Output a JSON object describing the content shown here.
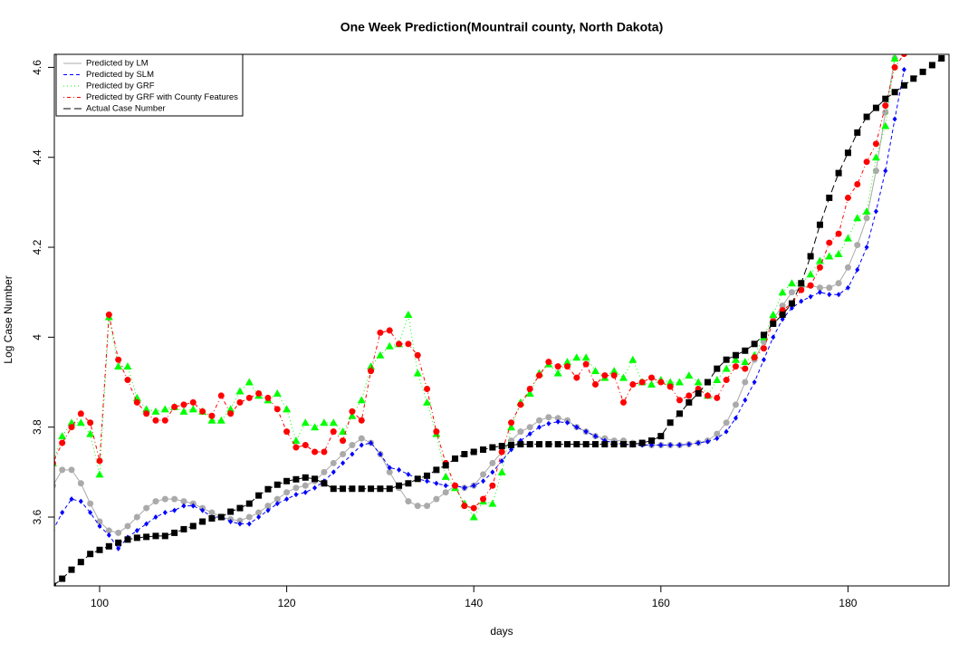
{
  "chart_data": {
    "type": "line",
    "title": "One Week Prediction(Mountrail county, North Dakota)",
    "x_label": "days",
    "y_label": "Log Case Number",
    "xlim": [
      95.16,
      190.8
    ],
    "ylim": [
      3.447,
      4.629
    ],
    "xticks": [
      100,
      120,
      140,
      160,
      180
    ],
    "yticks": [
      3.6,
      3.8,
      4.0,
      4.2,
      4.4,
      4.6
    ],
    "legend": "top-left",
    "x": [
      95,
      96,
      97,
      98,
      99,
      100,
      101,
      102,
      103,
      104,
      105,
      106,
      107,
      108,
      109,
      110,
      111,
      112,
      113,
      114,
      115,
      116,
      117,
      118,
      119,
      120,
      121,
      122,
      123,
      124,
      125,
      126,
      127,
      128,
      129,
      130,
      131,
      132,
      133,
      134,
      135,
      136,
      137,
      138,
      139,
      140,
      141,
      142,
      143,
      144,
      145,
      146,
      147,
      148,
      149,
      150,
      151,
      152,
      153,
      154,
      155,
      156,
      157,
      158,
      159,
      160,
      161,
      162,
      163,
      164,
      165,
      166,
      167,
      168,
      169,
      170,
      171,
      172,
      173,
      174,
      175,
      176,
      177,
      178,
      179,
      180,
      181,
      182,
      183,
      184,
      185,
      186,
      187,
      188,
      189,
      190
    ],
    "series": [
      {
        "name": "Predicted by LM",
        "color": "#aaaaaa",
        "marker": "circle",
        "dash": "solid",
        "values": [
          3.67,
          3.705,
          3.705,
          3.675,
          3.63,
          3.59,
          3.57,
          3.565,
          3.58,
          3.6,
          3.62,
          3.635,
          3.64,
          3.64,
          3.635,
          3.63,
          3.62,
          3.61,
          3.6,
          3.595,
          3.592,
          3.6,
          3.61,
          3.625,
          3.64,
          3.655,
          3.665,
          3.67,
          3.68,
          3.7,
          3.72,
          3.74,
          3.76,
          3.775,
          3.765,
          3.74,
          3.7,
          3.665,
          3.635,
          3.625,
          3.625,
          3.64,
          3.655,
          3.67,
          3.665,
          3.67,
          3.695,
          3.72,
          3.745,
          3.77,
          3.79,
          3.8,
          3.815,
          3.822,
          3.82,
          3.815,
          3.8,
          3.79,
          3.78,
          3.775,
          3.77,
          3.77,
          3.765,
          3.762,
          3.76,
          3.76,
          3.76,
          3.76,
          3.762,
          3.765,
          3.77,
          3.785,
          3.81,
          3.85,
          3.9,
          3.95,
          3.99,
          4.04,
          4.07,
          4.1,
          4.11,
          4.115,
          4.11,
          4.11,
          4.12,
          4.155,
          4.205,
          4.265,
          4.37,
          4.5,
          4.62,
          null,
          null,
          null,
          null,
          null
        ]
      },
      {
        "name": "Predicted by SLM",
        "color": "#0000ff",
        "marker": "diamond",
        "dash": "dashed",
        "values": [
          3.57,
          3.61,
          3.64,
          3.635,
          3.61,
          3.58,
          3.56,
          3.53,
          3.555,
          3.57,
          3.585,
          3.6,
          3.61,
          3.615,
          3.625,
          3.625,
          3.615,
          3.6,
          3.6,
          3.59,
          3.585,
          3.585,
          3.6,
          3.615,
          3.63,
          3.64,
          3.65,
          3.655,
          3.665,
          3.68,
          3.7,
          3.72,
          3.74,
          3.76,
          3.765,
          3.74,
          3.71,
          3.705,
          3.695,
          3.685,
          3.68,
          3.675,
          3.67,
          3.67,
          3.665,
          3.67,
          3.68,
          3.7,
          3.725,
          3.75,
          3.77,
          3.785,
          3.8,
          3.808,
          3.812,
          3.81,
          3.8,
          3.79,
          3.78,
          3.77,
          3.765,
          3.762,
          3.76,
          3.76,
          3.76,
          3.76,
          3.76,
          3.76,
          3.762,
          3.765,
          3.768,
          3.775,
          3.79,
          3.82,
          3.86,
          3.9,
          3.95,
          4.0,
          4.04,
          4.065,
          4.08,
          4.09,
          4.1,
          4.095,
          4.095,
          4.11,
          4.15,
          4.2,
          4.28,
          4.37,
          4.485,
          4.595,
          null,
          null,
          null,
          null
        ]
      },
      {
        "name": "Predicted by GRF",
        "color": "#00ff00",
        "marker": "triangle",
        "dash": "dotted",
        "values": [
          3.72,
          3.78,
          3.81,
          3.81,
          3.785,
          3.695,
          4.045,
          3.935,
          3.935,
          3.865,
          3.84,
          3.835,
          3.84,
          3.845,
          3.835,
          3.84,
          3.835,
          3.815,
          3.815,
          3.84,
          3.88,
          3.9,
          3.87,
          3.86,
          3.875,
          3.84,
          3.77,
          3.81,
          3.8,
          3.81,
          3.81,
          3.79,
          3.825,
          3.86,
          3.935,
          3.96,
          3.98,
          3.985,
          4.05,
          3.92,
          3.855,
          3.785,
          3.69,
          3.665,
          3.63,
          3.6,
          3.635,
          3.63,
          3.7,
          3.8,
          3.855,
          3.875,
          3.92,
          3.94,
          3.92,
          3.945,
          3.955,
          3.955,
          3.925,
          3.91,
          3.925,
          3.91,
          3.95,
          3.9,
          3.895,
          3.905,
          3.9,
          3.9,
          3.915,
          3.9,
          3.87,
          3.905,
          3.93,
          3.95,
          3.945,
          3.96,
          4.0,
          4.05,
          4.1,
          4.12,
          4.12,
          4.14,
          4.17,
          4.18,
          4.185,
          4.22,
          4.265,
          4.28,
          4.4,
          4.47,
          4.62,
          null,
          null,
          null,
          null,
          null
        ]
      },
      {
        "name": "Predicted by GRF with County Features",
        "color": "#ff0000",
        "marker": "circle",
        "dash": "dotdash",
        "values": [
          3.72,
          3.765,
          3.8,
          3.83,
          3.81,
          3.725,
          4.05,
          3.95,
          3.905,
          3.855,
          3.83,
          3.815,
          3.815,
          3.845,
          3.85,
          3.855,
          3.835,
          3.825,
          3.87,
          3.83,
          3.855,
          3.865,
          3.875,
          3.865,
          3.84,
          3.79,
          3.755,
          3.76,
          3.745,
          3.745,
          3.79,
          3.77,
          3.835,
          3.815,
          3.925,
          4.01,
          4.015,
          3.985,
          3.985,
          3.96,
          3.885,
          3.79,
          3.72,
          3.67,
          3.625,
          3.62,
          3.64,
          3.67,
          3.745,
          3.81,
          3.85,
          3.885,
          3.915,
          3.945,
          3.935,
          3.935,
          3.91,
          3.94,
          3.895,
          3.915,
          3.915,
          3.855,
          3.895,
          3.9,
          3.91,
          3.9,
          3.89,
          3.86,
          3.87,
          3.885,
          3.87,
          3.865,
          3.905,
          3.935,
          3.93,
          3.955,
          3.975,
          4.035,
          4.06,
          4.075,
          4.105,
          4.115,
          4.155,
          4.21,
          4.23,
          4.31,
          4.34,
          4.39,
          4.43,
          4.515,
          4.6,
          4.63,
          null,
          null,
          null,
          null
        ]
      },
      {
        "name": "Actual Case Number",
        "color": "#000000",
        "marker": "square",
        "dash": "longdash",
        "values": [
          3.447,
          3.463,
          3.483,
          3.5,
          3.518,
          3.527,
          3.535,
          3.543,
          3.55,
          3.554,
          3.556,
          3.558,
          3.558,
          3.565,
          3.573,
          3.58,
          3.59,
          3.597,
          3.6,
          3.612,
          3.62,
          3.63,
          3.648,
          3.662,
          3.672,
          3.68,
          3.684,
          3.688,
          3.685,
          3.675,
          3.663,
          3.663,
          3.663,
          3.663,
          3.663,
          3.663,
          3.663,
          3.67,
          3.675,
          3.685,
          3.692,
          3.705,
          3.715,
          3.73,
          3.74,
          3.745,
          3.75,
          3.755,
          3.758,
          3.76,
          3.762,
          3.762,
          3.762,
          3.762,
          3.762,
          3.762,
          3.762,
          3.762,
          3.762,
          3.762,
          3.762,
          3.762,
          3.762,
          3.765,
          3.77,
          3.78,
          3.81,
          3.83,
          3.855,
          3.875,
          3.9,
          3.93,
          3.95,
          3.96,
          3.97,
          3.985,
          4.005,
          4.03,
          4.05,
          4.075,
          4.12,
          4.18,
          4.25,
          4.31,
          4.365,
          4.41,
          4.455,
          4.49,
          4.51,
          4.53,
          4.545,
          4.56,
          4.575,
          4.59,
          4.605,
          4.62
        ]
      }
    ]
  }
}
